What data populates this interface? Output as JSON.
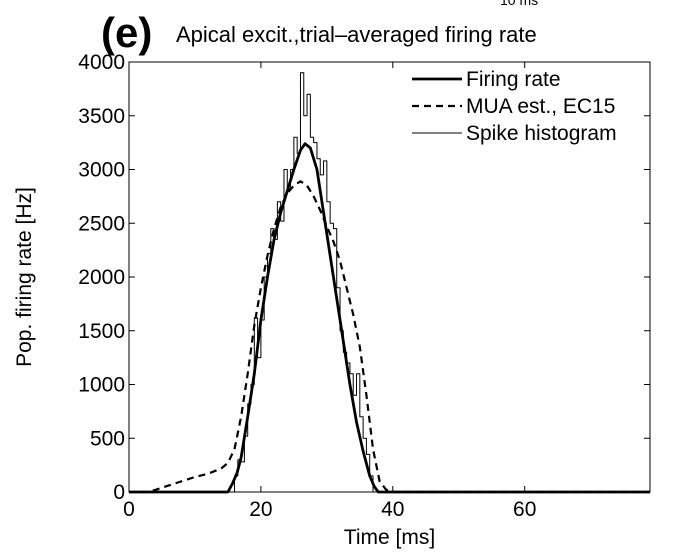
{
  "chart_data": {
    "type": "line",
    "panel_label": "(e)",
    "title": "Apical excit.,trial–averaged firing rate",
    "top_cut_text": "10 ms",
    "xlabel": "Time [ms]",
    "ylabel": "Pop. firing rate [Hz]",
    "xlim": [
      0,
      79
    ],
    "ylim": [
      0,
      4000
    ],
    "x_ticks": [
      0,
      20,
      40,
      60
    ],
    "y_ticks": [
      0,
      500,
      1000,
      1500,
      2000,
      2500,
      3000,
      3500,
      4000
    ],
    "grid": false,
    "legend_position": "top-right",
    "series": [
      {
        "name": "Firing rate",
        "style": "solid-thick",
        "x": [
          0,
          15,
          15.7,
          16.4,
          17,
          18,
          19,
          20,
          21,
          22,
          23,
          24,
          25,
          26,
          26.7,
          27.5,
          28.5,
          29.5,
          30.5,
          31.5,
          32.5,
          33.5,
          34.5,
          35.5,
          36.5,
          37.2,
          37.8,
          79
        ],
        "y": [
          0,
          0,
          80,
          180,
          320,
          700,
          1100,
          1600,
          2000,
          2350,
          2600,
          2800,
          3000,
          3180,
          3240,
          3200,
          3000,
          2600,
          2200,
          1800,
          1400,
          1000,
          650,
          380,
          150,
          50,
          0,
          0
        ]
      },
      {
        "name": "MUA est., EC15",
        "style": "dashed",
        "x": [
          0,
          3,
          5,
          8,
          10,
          12,
          14,
          15,
          16,
          17,
          18,
          19,
          20,
          21,
          22,
          23,
          24,
          25,
          26,
          27,
          28,
          29,
          30,
          31,
          32,
          33,
          34,
          35,
          36,
          37,
          38,
          39,
          40,
          79
        ],
        "y": [
          0,
          0,
          40,
          100,
          140,
          170,
          220,
          270,
          400,
          700,
          1100,
          1550,
          1900,
          2200,
          2450,
          2650,
          2780,
          2850,
          2890,
          2850,
          2750,
          2620,
          2470,
          2330,
          2150,
          1900,
          1650,
          1350,
          900,
          400,
          100,
          20,
          0,
          0
        ]
      },
      {
        "name": "Spike histogram",
        "style": "step-thin",
        "x": [
          16,
          16.5,
          17,
          17.5,
          18,
          18.5,
          19,
          19.5,
          20,
          20.5,
          21,
          21.5,
          22,
          22.5,
          23,
          23.5,
          24,
          24.5,
          25,
          25.5,
          26,
          26.5,
          27,
          27.5,
          28,
          28.5,
          29,
          29.5,
          30,
          30.5,
          31,
          31.5,
          32,
          32.5,
          33,
          33.5,
          34,
          34.5,
          35,
          35.5,
          36,
          36.5,
          37
        ],
        "y": [
          150,
          300,
          280,
          520,
          820,
          1000,
          1620,
          1250,
          1600,
          2000,
          2220,
          2450,
          2350,
          2700,
          2520,
          3000,
          2820,
          3000,
          3300,
          3150,
          3900,
          3500,
          3700,
          3300,
          3250,
          3100,
          2950,
          3080,
          2700,
          2500,
          2450,
          1900,
          1500,
          1300,
          1200,
          1100,
          900,
          1100,
          700,
          500,
          350,
          150,
          0
        ]
      }
    ]
  }
}
